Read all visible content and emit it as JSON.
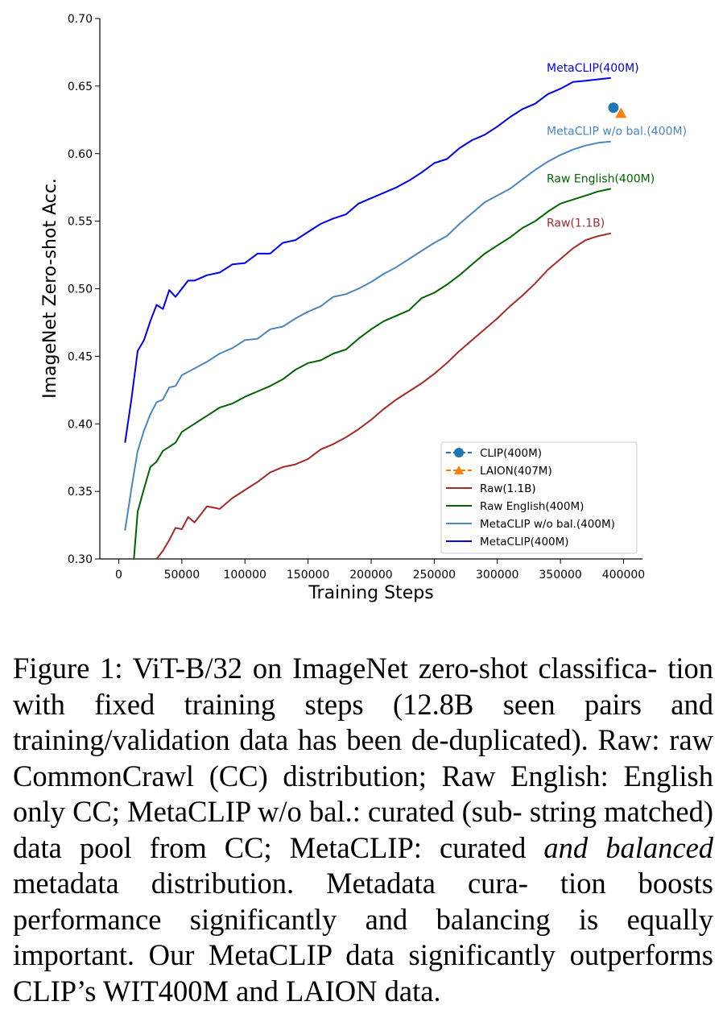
{
  "chart_data": {
    "type": "line",
    "xlabel": "Training Steps",
    "ylabel": "ImageNet Zero-shot Acc.",
    "xlim": [
      -15000,
      415000
    ],
    "ylim": [
      0.3,
      0.7
    ],
    "xticks": [
      0,
      50000,
      100000,
      150000,
      200000,
      250000,
      300000,
      350000,
      400000
    ],
    "xtick_labels": [
      "0",
      "50000",
      "100000",
      "150000",
      "200000",
      "250000",
      "300000",
      "350000",
      "400000"
    ],
    "yticks": [
      0.3,
      0.35,
      0.4,
      0.45,
      0.5,
      0.55,
      0.6,
      0.65,
      0.7
    ],
    "ytick_labels": [
      "0.30",
      "0.35",
      "0.40",
      "0.45",
      "0.50",
      "0.55",
      "0.60",
      "0.65",
      "0.70"
    ],
    "legend_position": "lower-right",
    "series": [
      {
        "name": "MetaCLIP(400M)",
        "color": "#0000ee",
        "label": "MetaCLIP(400M)",
        "x": [
          5000,
          10000,
          15000,
          20000,
          25000,
          30000,
          35000,
          40000,
          45000,
          50000,
          55000,
          60000,
          70000,
          80000,
          90000,
          100000,
          110000,
          120000,
          130000,
          140000,
          150000,
          160000,
          170000,
          180000,
          190000,
          200000,
          210000,
          220000,
          230000,
          240000,
          250000,
          260000,
          270000,
          280000,
          290000,
          300000,
          310000,
          320000,
          330000,
          340000,
          350000,
          360000,
          370000,
          380000,
          390000
        ],
        "y": [
          0.386,
          0.418,
          0.454,
          0.462,
          0.476,
          0.488,
          0.485,
          0.499,
          0.494,
          0.5,
          0.506,
          0.506,
          0.51,
          0.512,
          0.518,
          0.519,
          0.526,
          0.526,
          0.534,
          0.536,
          0.542,
          0.548,
          0.552,
          0.555,
          0.563,
          0.567,
          0.571,
          0.575,
          0.58,
          0.586,
          0.593,
          0.596,
          0.604,
          0.61,
          0.614,
          0.62,
          0.627,
          0.633,
          0.637,
          0.644,
          0.648,
          0.653,
          0.654,
          0.655,
          0.656
        ]
      },
      {
        "name": "MetaCLIP w/o bal.(400M)",
        "color": "#4a86c0",
        "label": "MetaCLIP w/o bal.(400M)",
        "x": [
          5000,
          10000,
          15000,
          20000,
          25000,
          30000,
          35000,
          40000,
          45000,
          50000,
          60000,
          70000,
          80000,
          90000,
          100000,
          110000,
          120000,
          130000,
          140000,
          150000,
          160000,
          170000,
          180000,
          190000,
          200000,
          210000,
          220000,
          230000,
          240000,
          250000,
          260000,
          270000,
          280000,
          290000,
          300000,
          310000,
          320000,
          330000,
          340000,
          350000,
          360000,
          370000,
          380000,
          390000
        ],
        "y": [
          0.321,
          0.352,
          0.38,
          0.395,
          0.407,
          0.416,
          0.418,
          0.427,
          0.428,
          0.436,
          0.441,
          0.446,
          0.452,
          0.456,
          0.462,
          0.463,
          0.47,
          0.472,
          0.478,
          0.483,
          0.487,
          0.494,
          0.496,
          0.5,
          0.505,
          0.511,
          0.516,
          0.522,
          0.528,
          0.534,
          0.539,
          0.548,
          0.556,
          0.564,
          0.569,
          0.574,
          0.581,
          0.588,
          0.594,
          0.599,
          0.603,
          0.606,
          0.608,
          0.609
        ]
      },
      {
        "name": "Raw English(400M)",
        "color": "#006400",
        "label": "Raw English(400M)",
        "x": [
          12000,
          15000,
          20000,
          25000,
          30000,
          35000,
          40000,
          45000,
          50000,
          60000,
          70000,
          80000,
          90000,
          100000,
          110000,
          120000,
          130000,
          140000,
          150000,
          160000,
          170000,
          180000,
          190000,
          200000,
          210000,
          220000,
          230000,
          240000,
          250000,
          260000,
          270000,
          280000,
          290000,
          300000,
          310000,
          320000,
          330000,
          340000,
          350000,
          360000,
          370000,
          380000,
          390000
        ],
        "y": [
          0.3,
          0.335,
          0.352,
          0.368,
          0.372,
          0.38,
          0.383,
          0.386,
          0.394,
          0.4,
          0.406,
          0.412,
          0.415,
          0.42,
          0.424,
          0.428,
          0.433,
          0.44,
          0.445,
          0.447,
          0.452,
          0.455,
          0.463,
          0.47,
          0.476,
          0.48,
          0.484,
          0.493,
          0.497,
          0.503,
          0.51,
          0.518,
          0.526,
          0.532,
          0.538,
          0.545,
          0.55,
          0.557,
          0.563,
          0.566,
          0.569,
          0.572,
          0.574
        ]
      },
      {
        "name": "Raw(1.1B)",
        "color": "#a52a2a",
        "label": "Raw(1.1B)",
        "x": [
          30000,
          35000,
          40000,
          45000,
          50000,
          55000,
          60000,
          70000,
          80000,
          90000,
          100000,
          110000,
          120000,
          130000,
          140000,
          150000,
          160000,
          170000,
          180000,
          190000,
          200000,
          210000,
          220000,
          230000,
          240000,
          250000,
          260000,
          270000,
          280000,
          290000,
          300000,
          310000,
          320000,
          330000,
          340000,
          350000,
          360000,
          370000,
          380000,
          390000
        ],
        "y": [
          0.3,
          0.306,
          0.314,
          0.323,
          0.322,
          0.331,
          0.327,
          0.339,
          0.337,
          0.345,
          0.351,
          0.357,
          0.364,
          0.368,
          0.37,
          0.374,
          0.381,
          0.385,
          0.39,
          0.396,
          0.403,
          0.411,
          0.418,
          0.424,
          0.43,
          0.437,
          0.445,
          0.454,
          0.462,
          0.47,
          0.478,
          0.487,
          0.495,
          0.504,
          0.514,
          0.522,
          0.53,
          0.536,
          0.539,
          0.541
        ]
      }
    ],
    "points": [
      {
        "name": "CLIP(400M)",
        "color": "#1f77b4",
        "marker": "circle",
        "x": 392000,
        "y": 0.634
      },
      {
        "name": "LAION(407M)",
        "color": "#ff7f0e",
        "marker": "triangle",
        "x": 398000,
        "y": 0.63
      }
    ],
    "legend": [
      {
        "label": "CLIP(400M)",
        "color": "#1f77b4",
        "marker": "circle",
        "dashed": true
      },
      {
        "label": "LAION(407M)",
        "color": "#ff7f0e",
        "marker": "triangle",
        "dashed": true
      },
      {
        "label": "Raw(1.1B)",
        "color": "#a52a2a"
      },
      {
        "label": "Raw English(400M)",
        "color": "#006400"
      },
      {
        "label": "MetaCLIP w/o bal.(400M)",
        "color": "#4a86c0"
      },
      {
        "label": "MetaCLIP(400M)",
        "color": "#0000ee"
      }
    ]
  },
  "caption": {
    "lines": [
      "Figure 1: ViT-B/32 on ImageNet zero-shot classifica-",
      "tion with fixed training steps (12.8B seen pairs and",
      "training/validation data has been de-duplicated). Raw:",
      "raw CommonCrawl (CC) distribution; Raw English:",
      "English only CC; MetaCLIP w/o bal.: curated (sub-",
      "string matched) data pool from CC; MetaCLIP: curated"
    ],
    "emph": "and balanced",
    "line7_rest": " metadata distribution. Metadata cura-",
    "lines_end": [
      "tion boosts performance significantly and balancing is",
      "equally important. Our MetaCLIP data significantly",
      "outperforms CLIP’s WIT400M and LAION data."
    ]
  }
}
